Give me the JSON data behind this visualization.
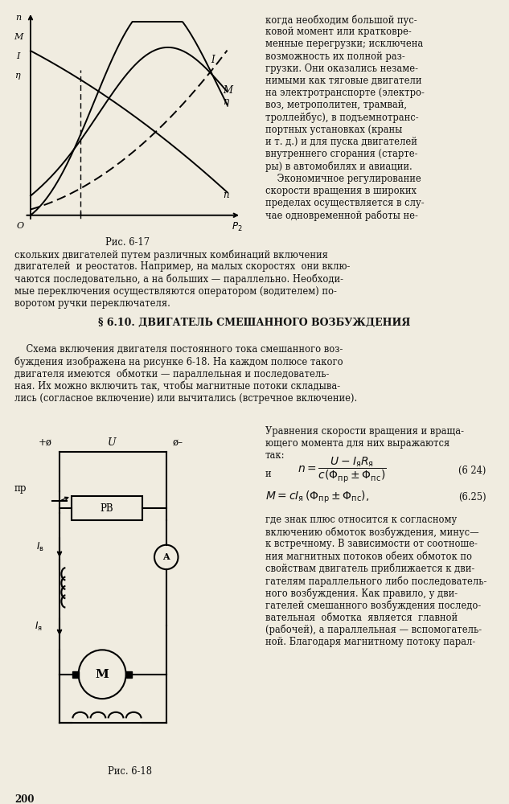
{
  "bg_color": "#f0ece0",
  "text_color": "#111111",
  "page_num": "200",
  "fig_caption_1": "Рис. 6-17",
  "fig_caption_2": "Рис. 6-18",
  "section_title": "§ 6.10. ДВИГАТЕЛЬ СМЕШАННОГО ВОЗБУЖДЕНИЯ",
  "top_right_lines": [
    "когда необходим большой пус-",
    "ковой момент или кратковре-",
    "менные перегрузки; исключена",
    "возможность их полной раз-",
    "грузки. Они оказались незаме-",
    "нимыми как тяговые двигатели",
    "на электротранспорте (электро-",
    "воз, метрополитен, трамвай,",
    "троллейбус), в подъемнотранс-",
    "портных установках (краны",
    "и т. д.) и для пуска двигателей",
    "внутреннего сгорания (старте-",
    "ры) в автомобилях и авиации.",
    "    Экономичное регулирование",
    "скорости вращения в широких",
    "пределах осуществляется в слу-",
    "чае одновременной работы не-"
  ],
  "mid_lines": [
    "скольких двигателей путем различных комбинаций включения",
    "двигателей  и реостатов. Например, на малых скоростях  они вклю-",
    "чаются последовательно, а на больших — параллельно. Необходи-",
    "мые переключения осуществляются оператором (водителем) по-",
    "воротом ручки переключателя."
  ],
  "para_lines": [
    "    Схема включения двигателя постоянного тока смешанного воз-",
    "буждения изображена на рисунке 6-18. На каждом полюсе такого",
    "двигателя имеются  обмотки — параллельная и последователь-",
    "ная. Их можно включить так, чтобы магнитные потоки складыва-",
    "лись (согласное включение) или вычитались (встречное включение)."
  ],
  "right_eq_lines": [
    "Уравнения скорости вращения и враща-",
    "ющего момента для них выражаются",
    "так:"
  ],
  "bottom_right_lines": [
    "где знак плюс относится к согласному",
    "включению обмоток возбуждения, минус—",
    "к встречному. В зависимости от соотноше-",
    "ния магнитных потоков обеих обмоток по",
    "свойствам двигатель приближается к дви-",
    "гателям параллельного либо последователь-",
    "ного возбуждения. Как правило, у дви-",
    "гателей смешанного возбуждения последо-",
    "вательная  обмотка  является  главной",
    "(рабочей), а параллельная — вспомогатель-",
    "ной. Благодаря магнитному потоку парал-"
  ]
}
